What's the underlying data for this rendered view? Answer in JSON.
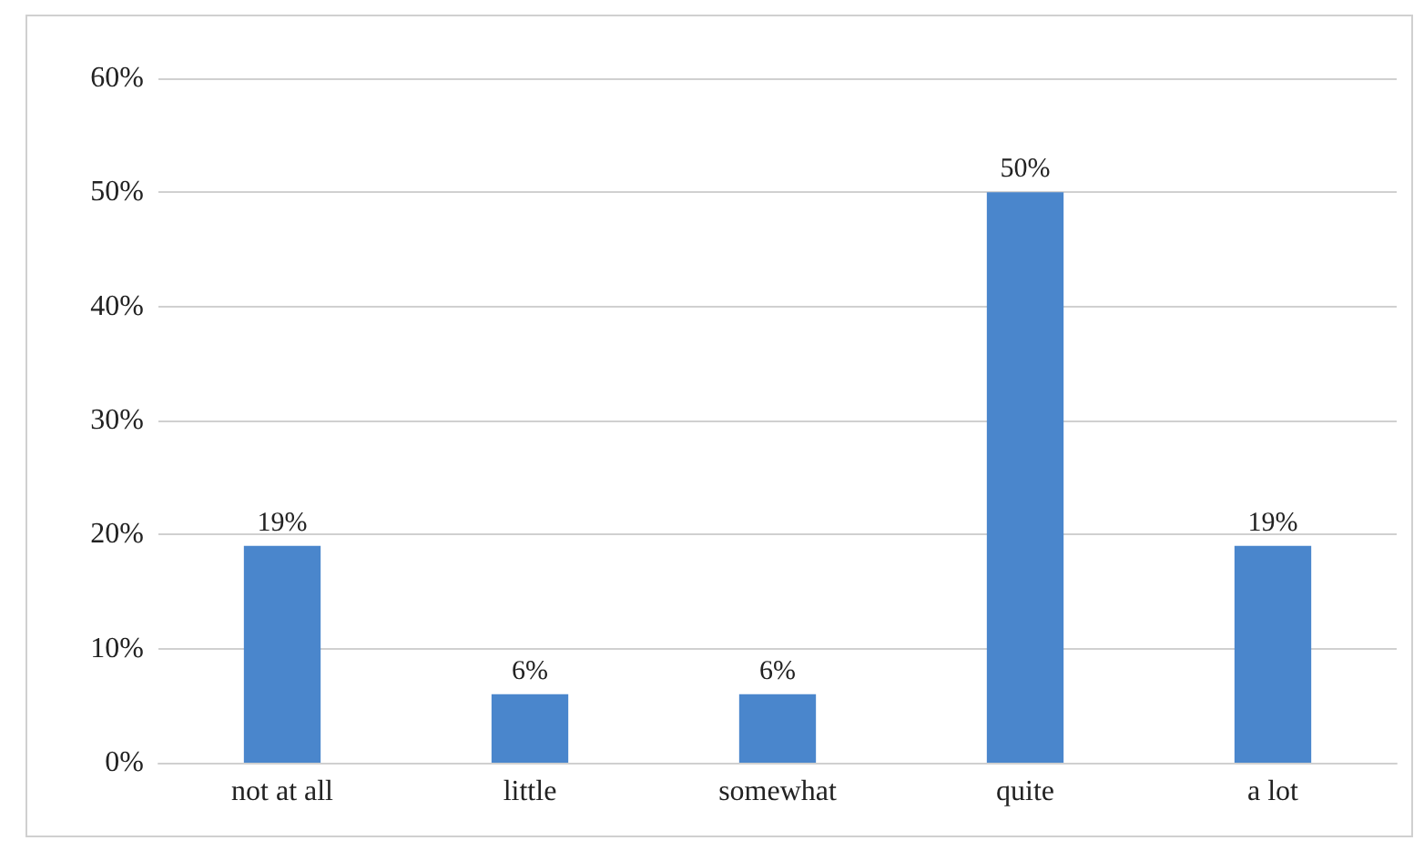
{
  "chart_data": {
    "type": "bar",
    "categories": [
      "not at all",
      "little",
      "somewhat",
      "quite",
      "a lot"
    ],
    "values": [
      19,
      6,
      6,
      50,
      19
    ],
    "value_labels": [
      "19%",
      "6%",
      "6%",
      "50%",
      "19%"
    ],
    "color": "#4a86cc",
    "ylim": [
      0,
      60
    ],
    "yticks": [
      {
        "value": 0,
        "label": "0%"
      },
      {
        "value": 10,
        "label": "10%"
      },
      {
        "value": 20,
        "label": "20%"
      },
      {
        "value": 30,
        "label": "30%"
      },
      {
        "value": 40,
        "label": "40%"
      },
      {
        "value": 50,
        "label": "50%"
      },
      {
        "value": 60,
        "label": "60%"
      }
    ],
    "grid": "y"
  }
}
